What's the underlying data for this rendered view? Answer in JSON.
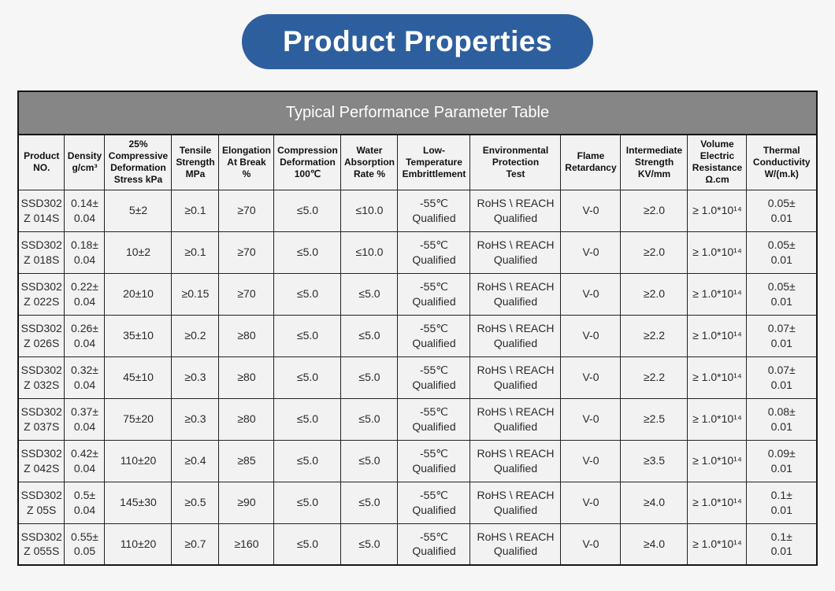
{
  "banner": {
    "label": "Product Properties",
    "background_color": "#2d5f9e",
    "text_color": "#ffffff"
  },
  "table": {
    "title": "Typical Performance Parameter Table",
    "title_background_color": "#868686",
    "title_text_color": "#ffffff",
    "cell_background_color": "#f2f2f2",
    "border_color": "#222222",
    "column_keys": [
      "product-no",
      "density",
      "compressive-deformation-stress",
      "tensile-strength",
      "elongation-at-break",
      "compression-deformation",
      "water-absorption-rate",
      "low-temperature-embrittlement",
      "environmental-protection-test",
      "flame-retardancy",
      "intermediate-strength",
      "volume-electric-resistance",
      "thermal-conductivity"
    ],
    "columns": [
      "Product\nNO.",
      "Density\ng/cm³",
      "25%\nCompressive\nDeformation\nStress kPa",
      "Tensile\nStrength\nMPa",
      "Elongation\nAt Break\n%",
      "Compression\nDeformation\n100℃",
      "Water\nAbsorption\nRate %",
      "Low-\nTemperature\nEmbrittlement",
      "Environmental\nProtection\nTest",
      "Flame\nRetardancy",
      "Intermediate\nStrength\nKV/mm",
      "Volume\nElectric\nResistance\nΩ.cm",
      "Thermal\nConductivity\nW/(m.k)"
    ],
    "rows": [
      [
        "SSD302\nZ 014S",
        "0.14±\n0.04",
        "5±2",
        "≥0.1",
        "≥70",
        "≤5.0",
        "≤10.0",
        "-55℃\nQualified",
        "RoHS \\ REACH\nQualified",
        "V-0",
        "≥2.0",
        "≥ 1.0*10¹⁴",
        "0.05±\n0.01"
      ],
      [
        "SSD302\nZ 018S",
        "0.18±\n0.04",
        "10±2",
        "≥0.1",
        "≥70",
        "≤5.0",
        "≤10.0",
        "-55℃\nQualified",
        "RoHS \\ REACH\nQualified",
        "V-0",
        "≥2.0",
        "≥ 1.0*10¹⁴",
        "0.05±\n0.01"
      ],
      [
        "SSD302\nZ 022S",
        "0.22±\n0.04",
        "20±10",
        "≥0.15",
        "≥70",
        "≤5.0",
        "≤5.0",
        "-55℃\nQualified",
        "RoHS \\ REACH\nQualified",
        "V-0",
        "≥2.0",
        "≥ 1.0*10¹⁴",
        "0.05±\n0.01"
      ],
      [
        "SSD302\nZ 026S",
        "0.26±\n0.04",
        "35±10",
        "≥0.2",
        "≥80",
        "≤5.0",
        "≤5.0",
        "-55℃\nQualified",
        "RoHS \\ REACH\nQualified",
        "V-0",
        "≥2.2",
        "≥ 1.0*10¹⁴",
        "0.07±\n0.01"
      ],
      [
        "SSD302\nZ 032S",
        "0.32±\n0.04",
        "45±10",
        "≥0.3",
        "≥80",
        "≤5.0",
        "≤5.0",
        "-55℃\nQualified",
        "RoHS \\ REACH\nQualified",
        "V-0",
        "≥2.2",
        "≥ 1.0*10¹⁴",
        "0.07±\n0.01"
      ],
      [
        "SSD302\nZ 037S",
        "0.37±\n0.04",
        "75±20",
        "≥0.3",
        "≥80",
        "≤5.0",
        "≤5.0",
        "-55℃\nQualified",
        "RoHS \\ REACH\nQualified",
        "V-0",
        "≥2.5",
        "≥ 1.0*10¹⁴",
        "0.08±\n0.01"
      ],
      [
        "SSD302\nZ 042S",
        "0.42±\n0.04",
        "110±20",
        "≥0.4",
        "≥85",
        "≤5.0",
        "≤5.0",
        "-55℃\nQualified",
        "RoHS \\ REACH\nQualified",
        "V-0",
        "≥3.5",
        "≥ 1.0*10¹⁴",
        "0.09±\n0.01"
      ],
      [
        "SSD302\nZ 05S",
        "0.5±\n0.04",
        "145±30",
        "≥0.5",
        "≥90",
        "≤5.0",
        "≤5.0",
        "-55℃\nQualified",
        "RoHS \\ REACH\nQualified",
        "V-0",
        "≥4.0",
        "≥ 1.0*10¹⁴",
        "0.1±\n0.01"
      ],
      [
        "SSD302\nZ 055S",
        "0.55±\n0.05",
        "110±20",
        "≥0.7",
        "≥160",
        "≤5.0",
        "≤5.0",
        "-55℃\nQualified",
        "RoHS \\ REACH\nQualified",
        "V-0",
        "≥4.0",
        "≥ 1.0*10¹⁴",
        "0.1±\n0.01"
      ]
    ]
  }
}
